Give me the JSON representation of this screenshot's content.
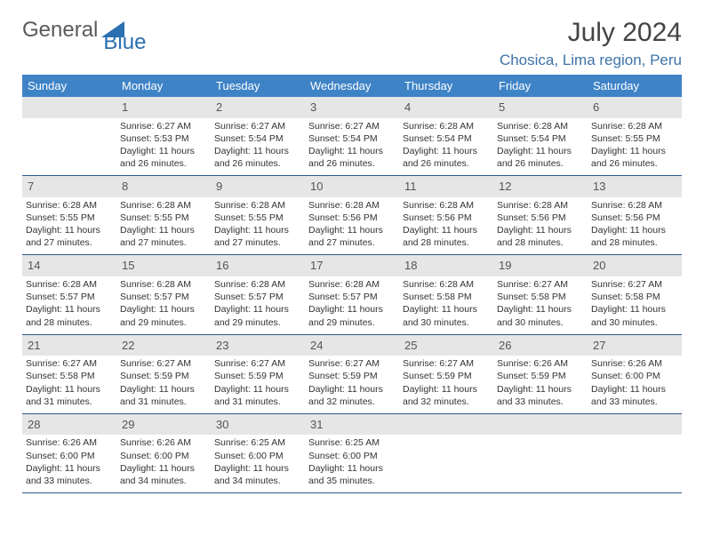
{
  "brand": {
    "general": "General",
    "blue": "Blue"
  },
  "title": "July 2024",
  "location": "Chosica, Lima region, Peru",
  "colors": {
    "header_bg": "#3e83c6",
    "header_text": "#ffffff",
    "daynum_bg": "#e6e6e6",
    "row_separator": "#2b5a8a",
    "location_color": "#3e73a8",
    "logo_blue": "#2b6fb0"
  },
  "dow": [
    "Sunday",
    "Monday",
    "Tuesday",
    "Wednesday",
    "Thursday",
    "Friday",
    "Saturday"
  ],
  "weeks": [
    {
      "nums": [
        "",
        "1",
        "2",
        "3",
        "4",
        "5",
        "6"
      ],
      "cells": [
        null,
        {
          "sunrise": "Sunrise: 6:27 AM",
          "sunset": "Sunset: 5:53 PM",
          "daylight": "Daylight: 11 hours and 26 minutes."
        },
        {
          "sunrise": "Sunrise: 6:27 AM",
          "sunset": "Sunset: 5:54 PM",
          "daylight": "Daylight: 11 hours and 26 minutes."
        },
        {
          "sunrise": "Sunrise: 6:27 AM",
          "sunset": "Sunset: 5:54 PM",
          "daylight": "Daylight: 11 hours and 26 minutes."
        },
        {
          "sunrise": "Sunrise: 6:28 AM",
          "sunset": "Sunset: 5:54 PM",
          "daylight": "Daylight: 11 hours and 26 minutes."
        },
        {
          "sunrise": "Sunrise: 6:28 AM",
          "sunset": "Sunset: 5:54 PM",
          "daylight": "Daylight: 11 hours and 26 minutes."
        },
        {
          "sunrise": "Sunrise: 6:28 AM",
          "sunset": "Sunset: 5:55 PM",
          "daylight": "Daylight: 11 hours and 26 minutes."
        }
      ]
    },
    {
      "nums": [
        "7",
        "8",
        "9",
        "10",
        "11",
        "12",
        "13"
      ],
      "cells": [
        {
          "sunrise": "Sunrise: 6:28 AM",
          "sunset": "Sunset: 5:55 PM",
          "daylight": "Daylight: 11 hours and 27 minutes."
        },
        {
          "sunrise": "Sunrise: 6:28 AM",
          "sunset": "Sunset: 5:55 PM",
          "daylight": "Daylight: 11 hours and 27 minutes."
        },
        {
          "sunrise": "Sunrise: 6:28 AM",
          "sunset": "Sunset: 5:55 PM",
          "daylight": "Daylight: 11 hours and 27 minutes."
        },
        {
          "sunrise": "Sunrise: 6:28 AM",
          "sunset": "Sunset: 5:56 PM",
          "daylight": "Daylight: 11 hours and 27 minutes."
        },
        {
          "sunrise": "Sunrise: 6:28 AM",
          "sunset": "Sunset: 5:56 PM",
          "daylight": "Daylight: 11 hours and 28 minutes."
        },
        {
          "sunrise": "Sunrise: 6:28 AM",
          "sunset": "Sunset: 5:56 PM",
          "daylight": "Daylight: 11 hours and 28 minutes."
        },
        {
          "sunrise": "Sunrise: 6:28 AM",
          "sunset": "Sunset: 5:56 PM",
          "daylight": "Daylight: 11 hours and 28 minutes."
        }
      ]
    },
    {
      "nums": [
        "14",
        "15",
        "16",
        "17",
        "18",
        "19",
        "20"
      ],
      "cells": [
        {
          "sunrise": "Sunrise: 6:28 AM",
          "sunset": "Sunset: 5:57 PM",
          "daylight": "Daylight: 11 hours and 28 minutes."
        },
        {
          "sunrise": "Sunrise: 6:28 AM",
          "sunset": "Sunset: 5:57 PM",
          "daylight": "Daylight: 11 hours and 29 minutes."
        },
        {
          "sunrise": "Sunrise: 6:28 AM",
          "sunset": "Sunset: 5:57 PM",
          "daylight": "Daylight: 11 hours and 29 minutes."
        },
        {
          "sunrise": "Sunrise: 6:28 AM",
          "sunset": "Sunset: 5:57 PM",
          "daylight": "Daylight: 11 hours and 29 minutes."
        },
        {
          "sunrise": "Sunrise: 6:28 AM",
          "sunset": "Sunset: 5:58 PM",
          "daylight": "Daylight: 11 hours and 30 minutes."
        },
        {
          "sunrise": "Sunrise: 6:27 AM",
          "sunset": "Sunset: 5:58 PM",
          "daylight": "Daylight: 11 hours and 30 minutes."
        },
        {
          "sunrise": "Sunrise: 6:27 AM",
          "sunset": "Sunset: 5:58 PM",
          "daylight": "Daylight: 11 hours and 30 minutes."
        }
      ]
    },
    {
      "nums": [
        "21",
        "22",
        "23",
        "24",
        "25",
        "26",
        "27"
      ],
      "cells": [
        {
          "sunrise": "Sunrise: 6:27 AM",
          "sunset": "Sunset: 5:58 PM",
          "daylight": "Daylight: 11 hours and 31 minutes."
        },
        {
          "sunrise": "Sunrise: 6:27 AM",
          "sunset": "Sunset: 5:59 PM",
          "daylight": "Daylight: 11 hours and 31 minutes."
        },
        {
          "sunrise": "Sunrise: 6:27 AM",
          "sunset": "Sunset: 5:59 PM",
          "daylight": "Daylight: 11 hours and 31 minutes."
        },
        {
          "sunrise": "Sunrise: 6:27 AM",
          "sunset": "Sunset: 5:59 PM",
          "daylight": "Daylight: 11 hours and 32 minutes."
        },
        {
          "sunrise": "Sunrise: 6:27 AM",
          "sunset": "Sunset: 5:59 PM",
          "daylight": "Daylight: 11 hours and 32 minutes."
        },
        {
          "sunrise": "Sunrise: 6:26 AM",
          "sunset": "Sunset: 5:59 PM",
          "daylight": "Daylight: 11 hours and 33 minutes."
        },
        {
          "sunrise": "Sunrise: 6:26 AM",
          "sunset": "Sunset: 6:00 PM",
          "daylight": "Daylight: 11 hours and 33 minutes."
        }
      ]
    },
    {
      "nums": [
        "28",
        "29",
        "30",
        "31",
        "",
        "",
        ""
      ],
      "cells": [
        {
          "sunrise": "Sunrise: 6:26 AM",
          "sunset": "Sunset: 6:00 PM",
          "daylight": "Daylight: 11 hours and 33 minutes."
        },
        {
          "sunrise": "Sunrise: 6:26 AM",
          "sunset": "Sunset: 6:00 PM",
          "daylight": "Daylight: 11 hours and 34 minutes."
        },
        {
          "sunrise": "Sunrise: 6:25 AM",
          "sunset": "Sunset: 6:00 PM",
          "daylight": "Daylight: 11 hours and 34 minutes."
        },
        {
          "sunrise": "Sunrise: 6:25 AM",
          "sunset": "Sunset: 6:00 PM",
          "daylight": "Daylight: 11 hours and 35 minutes."
        },
        null,
        null,
        null
      ]
    }
  ]
}
